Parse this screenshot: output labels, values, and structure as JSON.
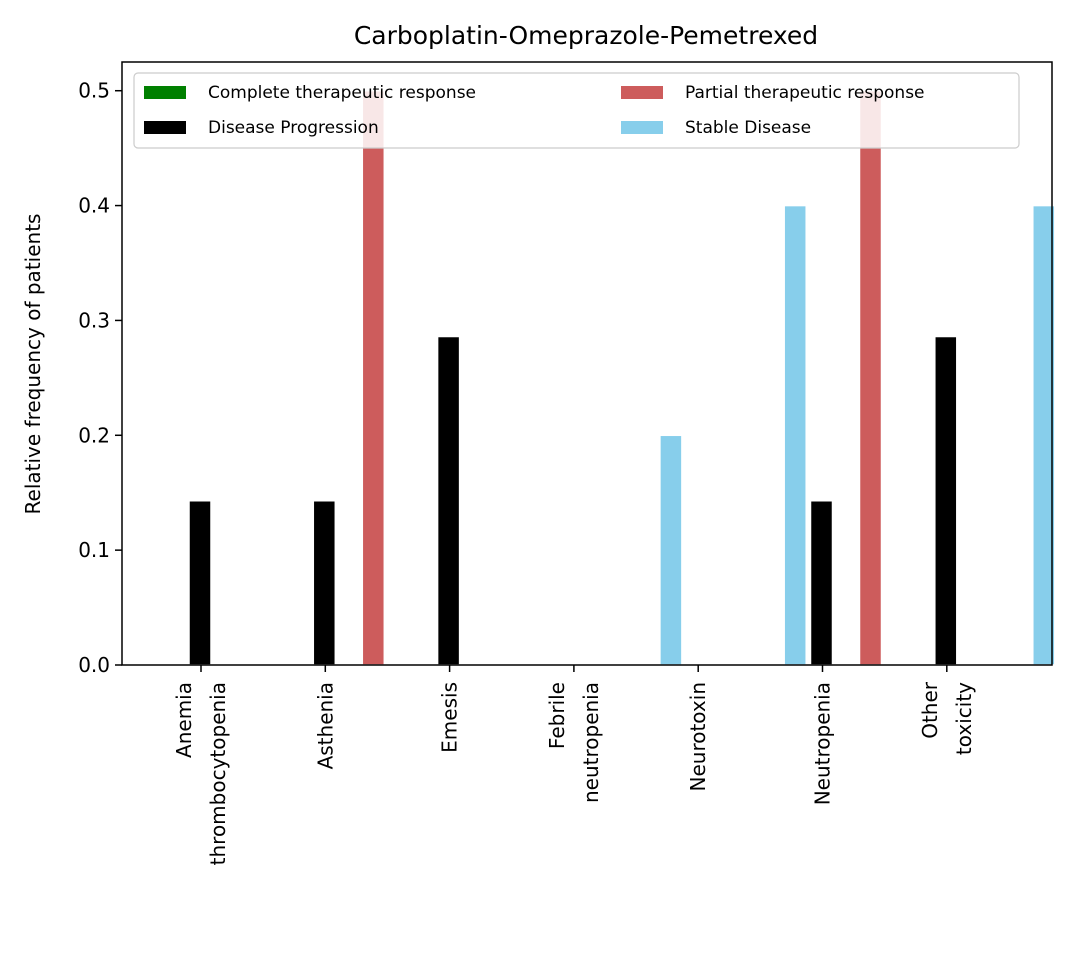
{
  "chart_data": {
    "type": "bar",
    "title": "Carboplatin-Omeprazole-Pemetrexed",
    "xlabel": "",
    "ylabel": "Relative frequency of patients",
    "ylim": [
      0,
      0.525
    ],
    "yticks": [
      "0.0",
      "0.1",
      "0.2",
      "0.3",
      "0.4",
      "0.5"
    ],
    "categories": [
      [
        "Anemia",
        "thrombocytopenia"
      ],
      [
        "Asthenia"
      ],
      [
        "Emesis"
      ],
      [
        "Febrile",
        "neutropenia"
      ],
      [
        "Neurotoxin"
      ],
      [
        "Neutropenia"
      ],
      [
        "Other",
        "toxicity"
      ]
    ],
    "series": [
      {
        "name": "Complete therapeutic response",
        "color": "#008000",
        "values": [
          0,
          0,
          0,
          0,
          0,
          0,
          0
        ]
      },
      {
        "name": "Disease Progression",
        "color": "#000000",
        "values": [
          0.143,
          0.143,
          0.286,
          0,
          0,
          0.143,
          0.286
        ]
      },
      {
        "name": "Partial therapeutic response",
        "color": "#cd5c5c",
        "values": [
          0,
          0.5,
          0,
          0,
          0,
          0.5,
          0
        ]
      },
      {
        "name": "Stable Disease",
        "color": "#87ceeb",
        "values": [
          0,
          0,
          0,
          0.2,
          0.4,
          0,
          0.4
        ]
      }
    ],
    "legend": {
      "placement": "top",
      "columns": 2,
      "order": [
        "Complete therapeutic response",
        "Disease Progression",
        "Partial therapeutic response",
        "Stable Disease"
      ]
    },
    "grid": false
  }
}
